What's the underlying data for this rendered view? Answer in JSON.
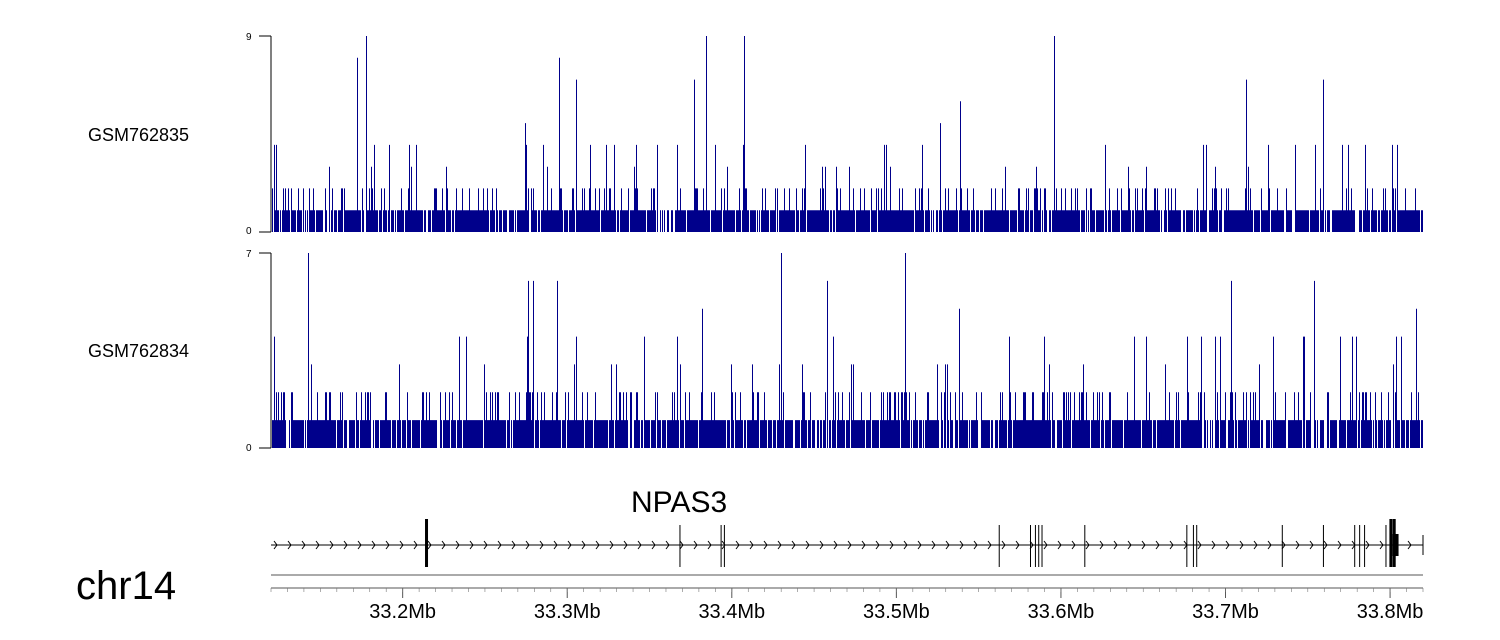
{
  "chart_data": {
    "type": "genome-track",
    "chromosome": "chr14",
    "x_range_mb": [
      33.12,
      33.82
    ],
    "x_tick_values_mb": [
      33.2,
      33.3,
      33.4,
      33.5,
      33.6,
      33.7,
      33.8
    ],
    "x_tick_labels": [
      "33.2Mb",
      "33.3Mb",
      "33.4Mb",
      "33.5Mb",
      "33.6Mb",
      "33.7Mb",
      "33.8Mb"
    ],
    "series": [
      {
        "name": "GSM762835",
        "ymin": 0,
        "ymax": 9,
        "ymin_label": "0",
        "ymax_label": "9",
        "color": "#00008b",
        "seed": 7
      },
      {
        "name": "GSM762834",
        "ymin": 0,
        "ymax": 7,
        "ymin_label": "0",
        "ymax_label": "7",
        "color": "#00008b",
        "seed": 19
      }
    ],
    "gene": {
      "name": "NPAS3",
      "strand": "+",
      "start_mb": 33.12,
      "end_mb": 33.82,
      "exons_mb": [
        33.2145,
        33.3685,
        33.3935,
        33.3955,
        33.5625,
        33.5815,
        33.5845,
        33.5865,
        33.5885,
        33.6145,
        33.6765,
        33.6805,
        33.6825,
        33.7345,
        33.7595,
        33.7785,
        33.7815,
        33.7845,
        33.7975,
        33.8005,
        33.8025
      ]
    }
  }
}
